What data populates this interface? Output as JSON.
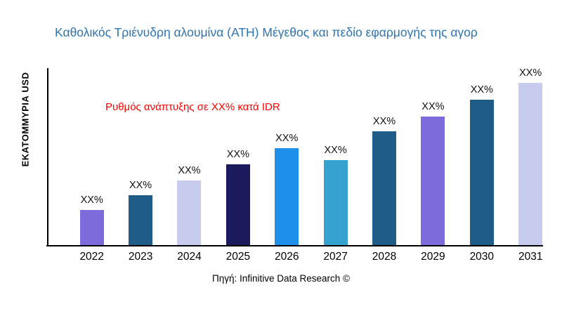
{
  "title": {
    "text": "Καθολικός Τριένυδρη αλουμίνα (ATH) Μέγεθος και πεδίο εφαρμογής της αγορ",
    "color": "#2E74B5"
  },
  "annotation": {
    "text": "Ρυθμός ανάπτυξης σε XX% κατά IDR",
    "color": "#FF0000"
  },
  "y_axis_label": "ΕΚΑΤΟΜΜΥΡΙΑ USD",
  "source": "Πηγή: Infinitive Data Research ©",
  "chart_data": {
    "type": "bar",
    "title": "Καθολικός Τριένυδρη αλουμίνα (ATH) Μέγεθος και πεδίο εφαρμογής της αγοράς",
    "xlabel": "",
    "ylabel": "ΕΚΑΤΟΜΜΥΡΙΑ USD",
    "categories": [
      "2022",
      "2023",
      "2024",
      "2025",
      "2026",
      "2027",
      "2028",
      "2029",
      "2030",
      "2031"
    ],
    "values": [
      50,
      70,
      91,
      114,
      137,
      120,
      161,
      182,
      205,
      229
    ],
    "values_note": "bars carry placeholder labels XX%; numeric values estimated from bar heights in relative units",
    "bar_labels": [
      "XX%",
      "XX%",
      "XX%",
      "XX%",
      "XX%",
      "XX%",
      "XX%",
      "XX%",
      "XX%",
      "XX%"
    ],
    "bar_colors": [
      "#7D6BDB",
      "#1F5C87",
      "#C7CCEF",
      "#1A1A5C",
      "#1E8FEA",
      "#35A3CF",
      "#1F5C87",
      "#7D6BDB",
      "#1F5C87",
      "#C7CCEF"
    ],
    "ylim": [
      0,
      250
    ],
    "grid": false,
    "legend": false,
    "annotation": "Ρυθμός ανάπτυξης σε XX% κατά IDR"
  }
}
